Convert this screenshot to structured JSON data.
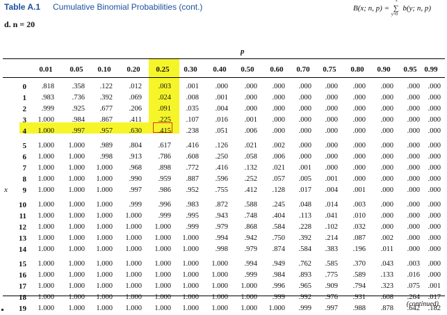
{
  "header": {
    "table_label": "Table A.1",
    "table_title": "Cumulative Binomial Probabilities (cont.)",
    "subtitle": "d.  n = 20",
    "formula_lhs": "B(x; n, p) =",
    "formula_sum_upper": "x",
    "formula_sum_lower": "y=0",
    "formula_rhs": "b(y; n, p)"
  },
  "p_label": "p",
  "x_label": "x",
  "p_values": [
    "0.01",
    "0.05",
    "0.10",
    "0.20",
    "0.25",
    "0.30",
    "0.40",
    "0.50",
    "0.60",
    "0.70",
    "0.75",
    "0.80",
    "0.90",
    "0.95",
    "0.99"
  ],
  "rows": [
    {
      "x": "0",
      "values": [
        ".818",
        ".358",
        ".122",
        ".012",
        ".003",
        ".001",
        ".000",
        ".000",
        ".000",
        ".000",
        ".000",
        ".000",
        ".000",
        ".000",
        ".000"
      ]
    },
    {
      "x": "1",
      "values": [
        ".983",
        ".736",
        ".392",
        ".069",
        ".024",
        ".008",
        ".001",
        ".000",
        ".000",
        ".000",
        ".000",
        ".000",
        ".000",
        ".000",
        ".000"
      ]
    },
    {
      "x": "2",
      "values": [
        ".999",
        ".925",
        ".677",
        ".206",
        ".091",
        ".035",
        ".004",
        ".000",
        ".000",
        ".000",
        ".000",
        ".000",
        ".000",
        ".000",
        ".000"
      ]
    },
    {
      "x": "3",
      "values": [
        "1.000",
        ".984",
        ".867",
        ".411",
        ".225",
        ".107",
        ".016",
        ".001",
        ".000",
        ".000",
        ".000",
        ".000",
        ".000",
        ".000",
        ".000"
      ]
    },
    {
      "x": "4",
      "values": [
        "1.000",
        ".997",
        ".957",
        ".630",
        ".415",
        ".238",
        ".051",
        ".006",
        ".000",
        ".000",
        ".000",
        ".000",
        ".000",
        ".000",
        ".000"
      ]
    },
    {
      "x": "5",
      "values": [
        "1.000",
        "1.000",
        ".989",
        ".804",
        ".617",
        ".416",
        ".126",
        ".021",
        ".002",
        ".000",
        ".000",
        ".000",
        ".000",
        ".000",
        ".000"
      ]
    },
    {
      "x": "6",
      "values": [
        "1.000",
        "1.000",
        ".998",
        ".913",
        ".786",
        ".608",
        ".250",
        ".058",
        ".006",
        ".000",
        ".000",
        ".000",
        ".000",
        ".000",
        ".000"
      ]
    },
    {
      "x": "7",
      "values": [
        "1.000",
        "1.000",
        "1.000",
        ".968",
        ".898",
        ".772",
        ".416",
        ".132",
        ".021",
        ".001",
        ".000",
        ".000",
        ".000",
        ".000",
        ".000"
      ]
    },
    {
      "x": "8",
      "values": [
        "1.000",
        "1.000",
        "1.000",
        ".990",
        ".959",
        ".887",
        ".596",
        ".252",
        ".057",
        ".005",
        ".001",
        ".000",
        ".000",
        ".000",
        ".000"
      ]
    },
    {
      "x": "9",
      "values": [
        "1.000",
        "1.000",
        "1.000",
        ".997",
        ".986",
        ".952",
        ".755",
        ".412",
        ".128",
        ".017",
        ".004",
        ".001",
        ".000",
        ".000",
        ".000"
      ]
    },
    {
      "x": "10",
      "values": [
        "1.000",
        "1.000",
        "1.000",
        ".999",
        ".996",
        ".983",
        ".872",
        ".588",
        ".245",
        ".048",
        ".014",
        ".003",
        ".000",
        ".000",
        ".000"
      ]
    },
    {
      "x": "11",
      "values": [
        "1.000",
        "1.000",
        "1.000",
        "1.000",
        ".999",
        ".995",
        ".943",
        ".748",
        ".404",
        ".113",
        ".041",
        ".010",
        ".000",
        ".000",
        ".000"
      ]
    },
    {
      "x": "12",
      "values": [
        "1.000",
        "1.000",
        "1.000",
        "1.000",
        "1.000",
        ".999",
        ".979",
        ".868",
        ".584",
        ".228",
        ".102",
        ".032",
        ".000",
        ".000",
        ".000"
      ]
    },
    {
      "x": "13",
      "values": [
        "1.000",
        "1.000",
        "1.000",
        "1.000",
        "1.000",
        "1.000",
        ".994",
        ".942",
        ".750",
        ".392",
        ".214",
        ".087",
        ".002",
        ".000",
        ".000"
      ]
    },
    {
      "x": "14",
      "values": [
        "1.000",
        "1.000",
        "1.000",
        "1.000",
        "1.000",
        "1.000",
        ".998",
        ".979",
        ".874",
        ".584",
        ".383",
        ".196",
        ".011",
        ".000",
        ".000"
      ]
    },
    {
      "x": "15",
      "values": [
        "1.000",
        "1.000",
        "1.000",
        "1.000",
        "1.000",
        "1.000",
        "1.000",
        ".994",
        ".949",
        ".762",
        ".585",
        ".370",
        ".043",
        ".003",
        ".000"
      ]
    },
    {
      "x": "16",
      "values": [
        "1.000",
        "1.000",
        "1.000",
        "1.000",
        "1.000",
        "1.000",
        "1.000",
        ".999",
        ".984",
        ".893",
        ".775",
        ".589",
        ".133",
        ".016",
        ".000"
      ]
    },
    {
      "x": "17",
      "values": [
        "1.000",
        "1.000",
        "1.000",
        "1.000",
        "1.000",
        "1.000",
        "1.000",
        "1.000",
        ".996",
        ".965",
        ".909",
        ".794",
        ".323",
        ".075",
        ".001"
      ]
    },
    {
      "x": "18",
      "values": [
        "1.000",
        "1.000",
        "1.000",
        "1.000",
        "1.000",
        "1.000",
        "1.000",
        "1.000",
        ".999",
        ".992",
        ".976",
        ".931",
        ".608",
        ".264",
        ".017"
      ]
    },
    {
      "x": "19",
      "values": [
        "1.000",
        "1.000",
        "1.000",
        "1.000",
        "1.000",
        "1.000",
        "1.000",
        "1.000",
        "1.000",
        ".999",
        ".997",
        ".988",
        ".878",
        ".642",
        ".182"
      ]
    }
  ],
  "footer": {
    "continued": "(continued)"
  },
  "colors": {
    "title": "#1b4f9c",
    "highlight": "#f6f52a",
    "marker": "#e0302a"
  }
}
